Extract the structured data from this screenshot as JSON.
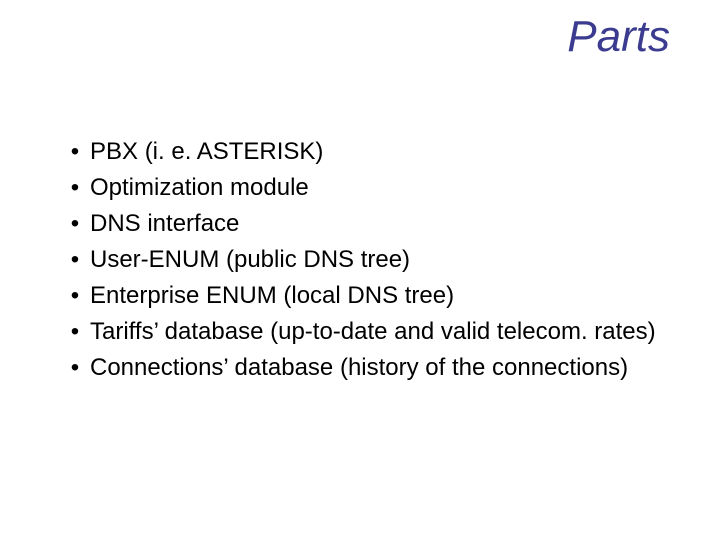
{
  "slide": {
    "title": "Parts",
    "title_color": "#3b3b8f",
    "title_fontsize": 44,
    "title_style": "italic",
    "background_color": "#ffffff",
    "bullet_glyph": "•",
    "bullet_color": "#000000",
    "body_fontsize": 24,
    "body_color": "#000000",
    "items": [
      {
        "text": "PBX (i. e. ASTERISK)"
      },
      {
        "text": "Optimization module"
      },
      {
        "text": "DNS interface"
      },
      {
        "text": "User-ENUM (public DNS tree)"
      },
      {
        "text": "Enterprise ENUM (local DNS tree)"
      },
      {
        "text": "Tariffs’ database (up-to-date and valid telecom. rates)"
      },
      {
        "text": "Connections’ database (history of the connections)"
      }
    ]
  }
}
